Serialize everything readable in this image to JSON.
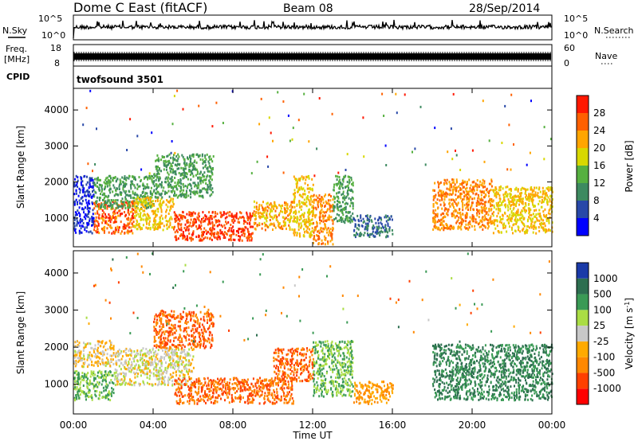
{
  "header": {
    "station": "Dome C East (fitACF)",
    "beam": "Beam 08",
    "date": "28/Sep/2014"
  },
  "noise_panel": {
    "left_label": "N.Sky",
    "right_label": "N.Search",
    "left_ticks": [
      "10^5",
      "10^0"
    ],
    "right_ticks": [
      "10^5",
      "10^0"
    ]
  },
  "freq_panel": {
    "left_label_1": "Freq.",
    "left_label_2": "[MHz]",
    "right_label": "Nave",
    "left_ticks": [
      "18",
      "8"
    ],
    "right_ticks": [
      "60",
      "0"
    ]
  },
  "cpid": {
    "label": "CPID",
    "program": "twofsound 3501"
  },
  "colors": {
    "power_scale": [
      "#0000ff",
      "#2848a8",
      "#3d8a60",
      "#56b040",
      "#d8d800",
      "#ffa500",
      "#ff6000",
      "#ff1800"
    ],
    "velocity_scale": [
      "#ff0000",
      "#ff4000",
      "#ff8800",
      "#ffaa00",
      "#c8c8c8",
      "#aadd44",
      "#3a9a55",
      "#2d6e50",
      "#1a3aa8"
    ]
  },
  "chart_data": [
    {
      "type": "heatmap",
      "name": "power",
      "ylabel": "Slant Range [km]",
      "yticks": [
        1000,
        2000,
        3000,
        4000
      ],
      "ylim": [
        200,
        4600
      ],
      "xlim": [
        0,
        24
      ],
      "colorbar": {
        "label": "Power [dB]",
        "ticks": [
          "28",
          "24",
          "20",
          "16",
          "12",
          "8",
          "4"
        ],
        "range": [
          0,
          32
        ]
      },
      "bands": [
        {
          "t": [
            0,
            1
          ],
          "r": [
            600,
            2200
          ],
          "level": 4
        },
        {
          "t": [
            1,
            3
          ],
          "r": [
            600,
            1500
          ],
          "level": 26
        },
        {
          "t": [
            1,
            4
          ],
          "r": [
            1300,
            2200
          ],
          "level": 12
        },
        {
          "t": [
            3,
            5
          ],
          "r": [
            700,
            1600
          ],
          "level": 20
        },
        {
          "t": [
            4,
            7
          ],
          "r": [
            1600,
            2800
          ],
          "level": 12
        },
        {
          "t": [
            5,
            9
          ],
          "r": [
            400,
            1200
          ],
          "level": 28
        },
        {
          "t": [
            9,
            11
          ],
          "r": [
            700,
            1500
          ],
          "level": 22
        },
        {
          "t": [
            11,
            12
          ],
          "r": [
            500,
            2200
          ],
          "level": 20
        },
        {
          "t": [
            12,
            13
          ],
          "r": [
            300,
            1700
          ],
          "level": 24
        },
        {
          "t": [
            13,
            14
          ],
          "r": [
            900,
            2200
          ],
          "level": 12
        },
        {
          "t": [
            14,
            16
          ],
          "r": [
            500,
            1100
          ],
          "level": 8
        },
        {
          "t": [
            18,
            21
          ],
          "r": [
            700,
            2100
          ],
          "level": 24
        },
        {
          "t": [
            21,
            24
          ],
          "r": [
            600,
            1900
          ],
          "level": 20
        }
      ]
    },
    {
      "type": "heatmap",
      "name": "velocity",
      "ylabel": "Slant Range [km]",
      "xlabel": "Time UT",
      "xticks": [
        "00:00",
        "04:00",
        "08:00",
        "12:00",
        "16:00",
        "20:00",
        "00:00"
      ],
      "yticks": [
        1000,
        2000,
        3000,
        4000
      ],
      "ylim": [
        200,
        4600
      ],
      "xlim": [
        0,
        24
      ],
      "colorbar": {
        "label": "Velocity [m s",
        "ticks": [
          "1000",
          "500",
          "100",
          "25",
          "-25",
          "-100",
          "-500",
          "-1000"
        ]
      },
      "bands": [
        {
          "t": [
            0,
            2
          ],
          "r": [
            1500,
            2200
          ],
          "level": -25
        },
        {
          "t": [
            0,
            2
          ],
          "r": [
            600,
            1400
          ],
          "level": 100
        },
        {
          "t": [
            2,
            6
          ],
          "r": [
            1000,
            2000
          ],
          "level": 0
        },
        {
          "t": [
            4,
            7
          ],
          "r": [
            2000,
            3000
          ],
          "level": -500
        },
        {
          "t": [
            5,
            11
          ],
          "r": [
            500,
            1200
          ],
          "level": -500
        },
        {
          "t": [
            10,
            12
          ],
          "r": [
            1100,
            2000
          ],
          "level": -500
        },
        {
          "t": [
            12,
            14
          ],
          "r": [
            700,
            2200
          ],
          "level": 100
        },
        {
          "t": [
            14,
            16
          ],
          "r": [
            500,
            1100
          ],
          "level": -100
        },
        {
          "t": [
            18,
            24
          ],
          "r": [
            600,
            2100
          ],
          "level": 500
        }
      ]
    }
  ]
}
